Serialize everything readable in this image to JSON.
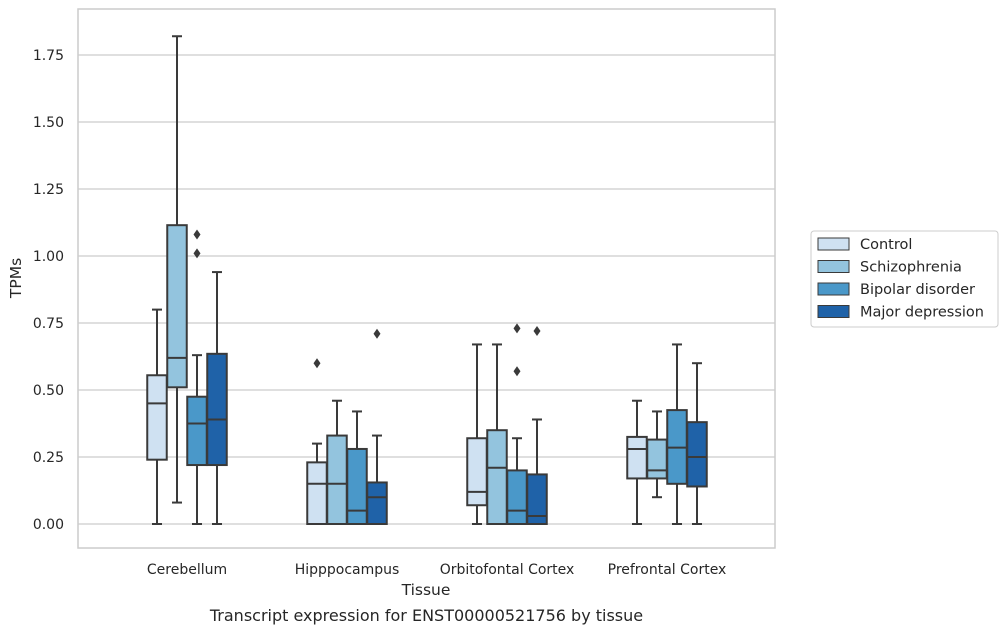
{
  "caption": "Transcript expression for ENST00000521756 by tissue",
  "chart_data": {
    "type": "boxplot",
    "xlabel": "Tissue",
    "ylabel": "TPMs",
    "ylim": [
      -0.09,
      1.93
    ],
    "yticks": [
      "0.00",
      "0.25",
      "0.50",
      "0.75",
      "1.00",
      "1.25",
      "1.50",
      "1.75"
    ],
    "grid": true,
    "legend_position": "right",
    "categories": [
      "Cerebellum",
      "Hipppocampus",
      "Orbitofontal Cortex",
      "Prefrontal Cortex"
    ],
    "series": [
      {
        "name": "Control",
        "color": "#cfe1f2",
        "boxes": [
          {
            "whislo": 0.0,
            "q1": 0.24,
            "med": 0.45,
            "q3": 0.555,
            "whishi": 0.8,
            "fliers": []
          },
          {
            "whislo": 0.0,
            "q1": 0.0,
            "med": 0.15,
            "q3": 0.23,
            "whishi": 0.3,
            "fliers": [
              0.6
            ]
          },
          {
            "whislo": 0.0,
            "q1": 0.07,
            "med": 0.12,
            "q3": 0.32,
            "whishi": 0.67,
            "fliers": []
          },
          {
            "whislo": 0.0,
            "q1": 0.17,
            "med": 0.28,
            "q3": 0.325,
            "whishi": 0.46,
            "fliers": []
          }
        ]
      },
      {
        "name": "Schizophrenia",
        "color": "#93c4de",
        "boxes": [
          {
            "whislo": 0.08,
            "q1": 0.51,
            "med": 0.62,
            "q3": 1.115,
            "whishi": 1.82,
            "fliers": []
          },
          {
            "whislo": 0.0,
            "q1": 0.0,
            "med": 0.15,
            "q3": 0.33,
            "whishi": 0.46,
            "fliers": []
          },
          {
            "whislo": 0.0,
            "q1": 0.0,
            "med": 0.21,
            "q3": 0.35,
            "whishi": 0.67,
            "fliers": []
          },
          {
            "whislo": 0.1,
            "q1": 0.17,
            "med": 0.2,
            "q3": 0.315,
            "whishi": 0.42,
            "fliers": []
          }
        ]
      },
      {
        "name": "Bipolar disorder",
        "color": "#4a98c9",
        "boxes": [
          {
            "whislo": 0.0,
            "q1": 0.22,
            "med": 0.375,
            "q3": 0.475,
            "whishi": 0.63,
            "fliers": [
              1.01,
              1.08
            ]
          },
          {
            "whislo": 0.0,
            "q1": 0.0,
            "med": 0.05,
            "q3": 0.28,
            "whishi": 0.42,
            "fliers": []
          },
          {
            "whislo": 0.0,
            "q1": 0.0,
            "med": 0.05,
            "q3": 0.2,
            "whishi": 0.32,
            "fliers": [
              0.57,
              0.73
            ]
          },
          {
            "whislo": 0.0,
            "q1": 0.15,
            "med": 0.285,
            "q3": 0.425,
            "whishi": 0.67,
            "fliers": []
          }
        ]
      },
      {
        "name": "Major depression",
        "color": "#1f62a8",
        "boxes": [
          {
            "whislo": 0.0,
            "q1": 0.22,
            "med": 0.39,
            "q3": 0.635,
            "whishi": 0.94,
            "fliers": []
          },
          {
            "whislo": 0.0,
            "q1": 0.0,
            "med": 0.1,
            "q3": 0.155,
            "whishi": 0.33,
            "fliers": [
              0.71
            ]
          },
          {
            "whislo": 0.0,
            "q1": 0.0,
            "med": 0.03,
            "q3": 0.185,
            "whishi": 0.39,
            "fliers": [
              0.72
            ]
          },
          {
            "whislo": 0.0,
            "q1": 0.14,
            "med": 0.25,
            "q3": 0.38,
            "whishi": 0.6,
            "fliers": []
          }
        ]
      }
    ]
  }
}
